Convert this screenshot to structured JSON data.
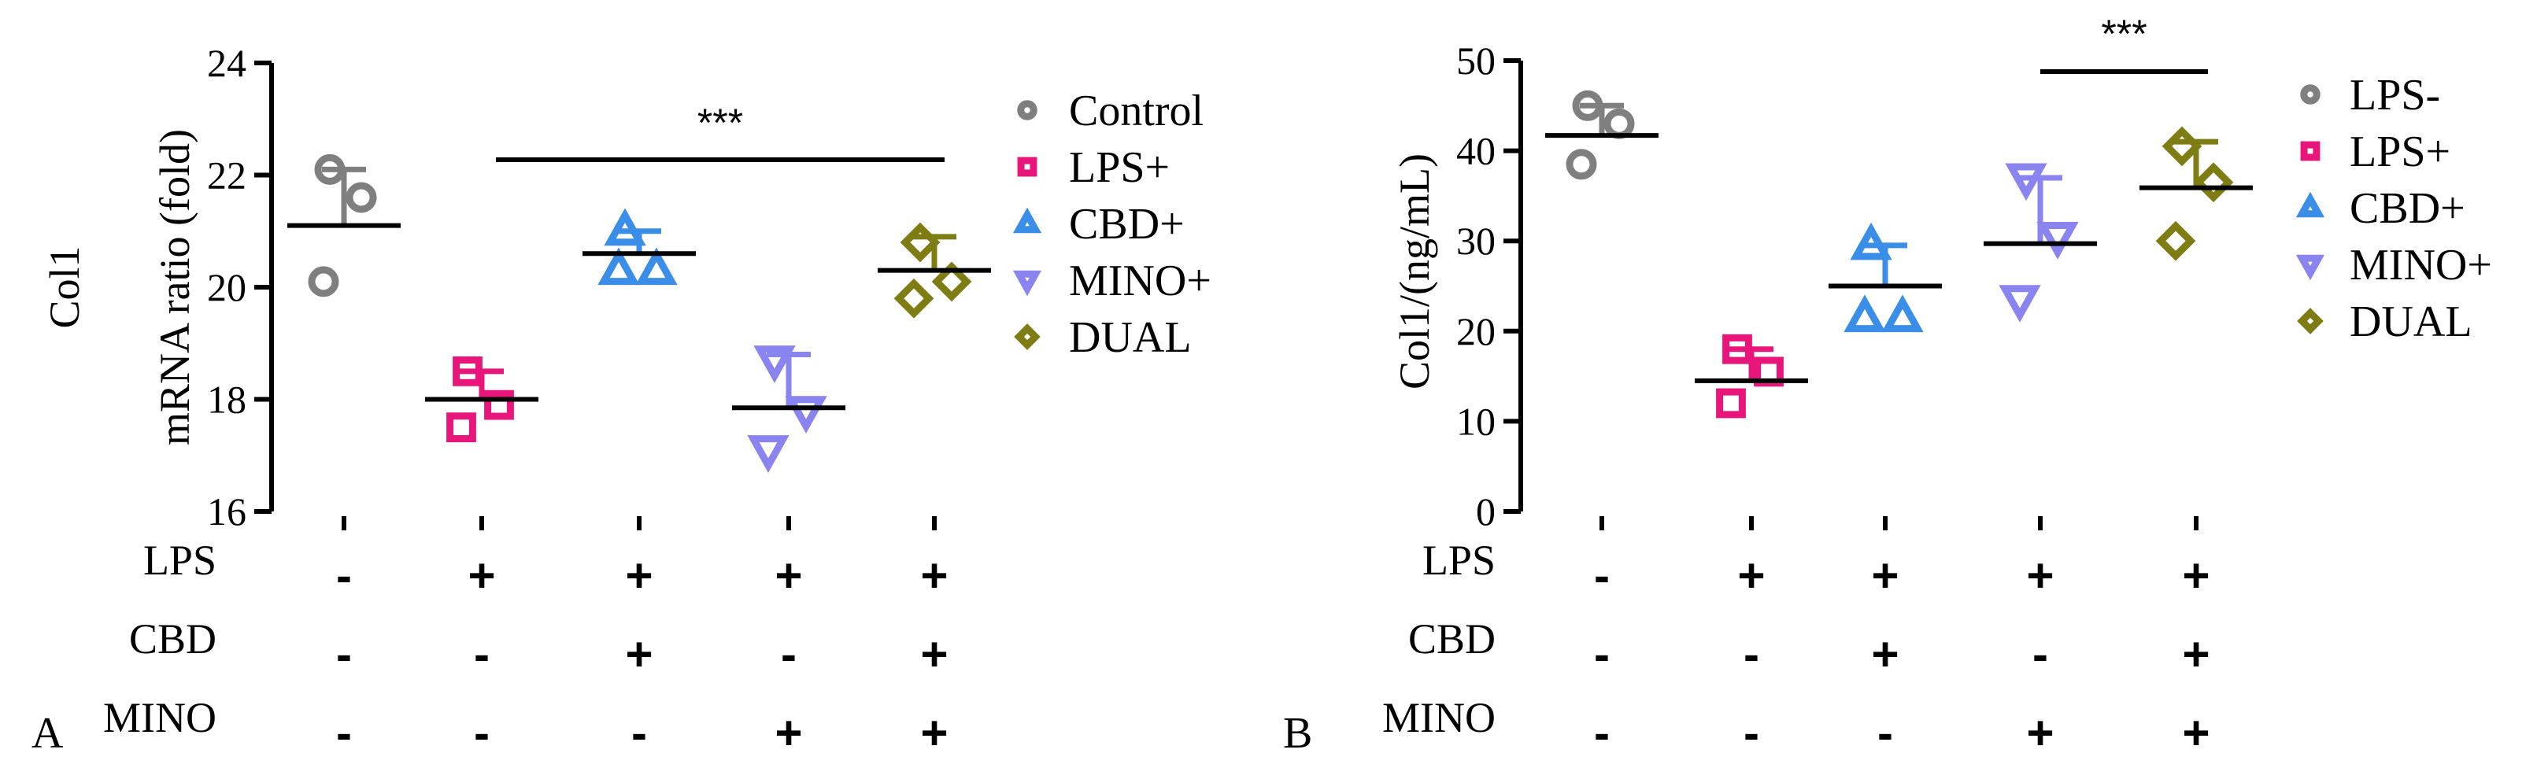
{
  "chart_data": [
    {
      "type": "scatter",
      "panel_label": "A",
      "ylabel": "mRNA ratio (fold)",
      "ylabel_top": "Col1",
      "ylim": [
        16,
        24
      ],
      "yticks": [
        16,
        18,
        20,
        22,
        24
      ],
      "significance": "***",
      "legend": [
        "Control",
        "LPS+",
        "CBD+",
        "MINO+",
        "DUAL"
      ],
      "series": [
        {
          "name": "Control",
          "marker": "circle",
          "color": "#7f7f7f",
          "points": [
            22.1,
            21.6,
            20.1
          ],
          "mean": 21.1,
          "err_top": 22.1
        },
        {
          "name": "LPS+",
          "marker": "square",
          "color": "#e8157a",
          "points": [
            18.5,
            17.9,
            17.5
          ],
          "mean": 18.0,
          "err_top": 18.5
        },
        {
          "name": "CBD+",
          "marker": "triangle-up",
          "color": "#3b8ee8",
          "points": [
            21.0,
            20.3,
            20.3
          ],
          "mean": 20.6,
          "err_top": 21.0
        },
        {
          "name": "MINO+",
          "marker": "triangle-down",
          "color": "#8a84f0",
          "points": [
            18.7,
            17.8,
            17.1
          ],
          "mean": 17.85,
          "err_top": 18.8
        },
        {
          "name": "DUAL",
          "marker": "diamond",
          "color": "#7d7d14",
          "points": [
            20.8,
            20.1,
            19.8
          ],
          "mean": 20.3,
          "err_top": 20.9
        }
      ],
      "conditions": [
        {
          "label": "LPS",
          "values": [
            "-",
            "+",
            "+",
            "+",
            "+"
          ]
        },
        {
          "label": "CBD",
          "values": [
            "-",
            "-",
            "+",
            "-",
            "+"
          ]
        },
        {
          "label": "MINO",
          "values": [
            "-",
            "-",
            "-",
            "+",
            "+"
          ]
        }
      ]
    },
    {
      "type": "scatter",
      "panel_label": "B",
      "ylabel": "Col1/(ng/mL)",
      "ylim": [
        0,
        50
      ],
      "yticks": [
        0,
        10,
        20,
        30,
        40,
        50
      ],
      "significance": "***",
      "legend": [
        "LPS-",
        "LPS+",
        "CBD+",
        "MINO+",
        "DUAL"
      ],
      "series": [
        {
          "name": "LPS-",
          "marker": "circle",
          "color": "#7f7f7f",
          "points": [
            45,
            43,
            38.5
          ],
          "mean": 41.7,
          "err_top": 45
        },
        {
          "name": "LPS+",
          "marker": "square",
          "color": "#e8157a",
          "points": [
            18,
            15.5,
            12
          ],
          "mean": 14.5,
          "err_top": 18
        },
        {
          "name": "CBD+",
          "marker": "triangle-up",
          "color": "#3b8ee8",
          "points": [
            29.5,
            21.5,
            21.5
          ],
          "mean": 25,
          "err_top": 29.5
        },
        {
          "name": "MINO+",
          "marker": "triangle-down",
          "color": "#8a84f0",
          "points": [
            37,
            30.5,
            23.5
          ],
          "mean": 29.7,
          "err_top": 37
        },
        {
          "name": "DUAL",
          "marker": "diamond",
          "color": "#7d7d14",
          "points": [
            40.5,
            36.5,
            30
          ],
          "mean": 35.9,
          "err_top": 41
        }
      ],
      "conditions": [
        {
          "label": "LPS",
          "values": [
            "-",
            "+",
            "+",
            "+",
            "+"
          ]
        },
        {
          "label": "CBD",
          "values": [
            "-",
            "-",
            "+",
            "-",
            "+"
          ]
        },
        {
          "label": "MINO",
          "values": [
            "-",
            "-",
            "-",
            "+",
            "+"
          ]
        }
      ]
    }
  ]
}
